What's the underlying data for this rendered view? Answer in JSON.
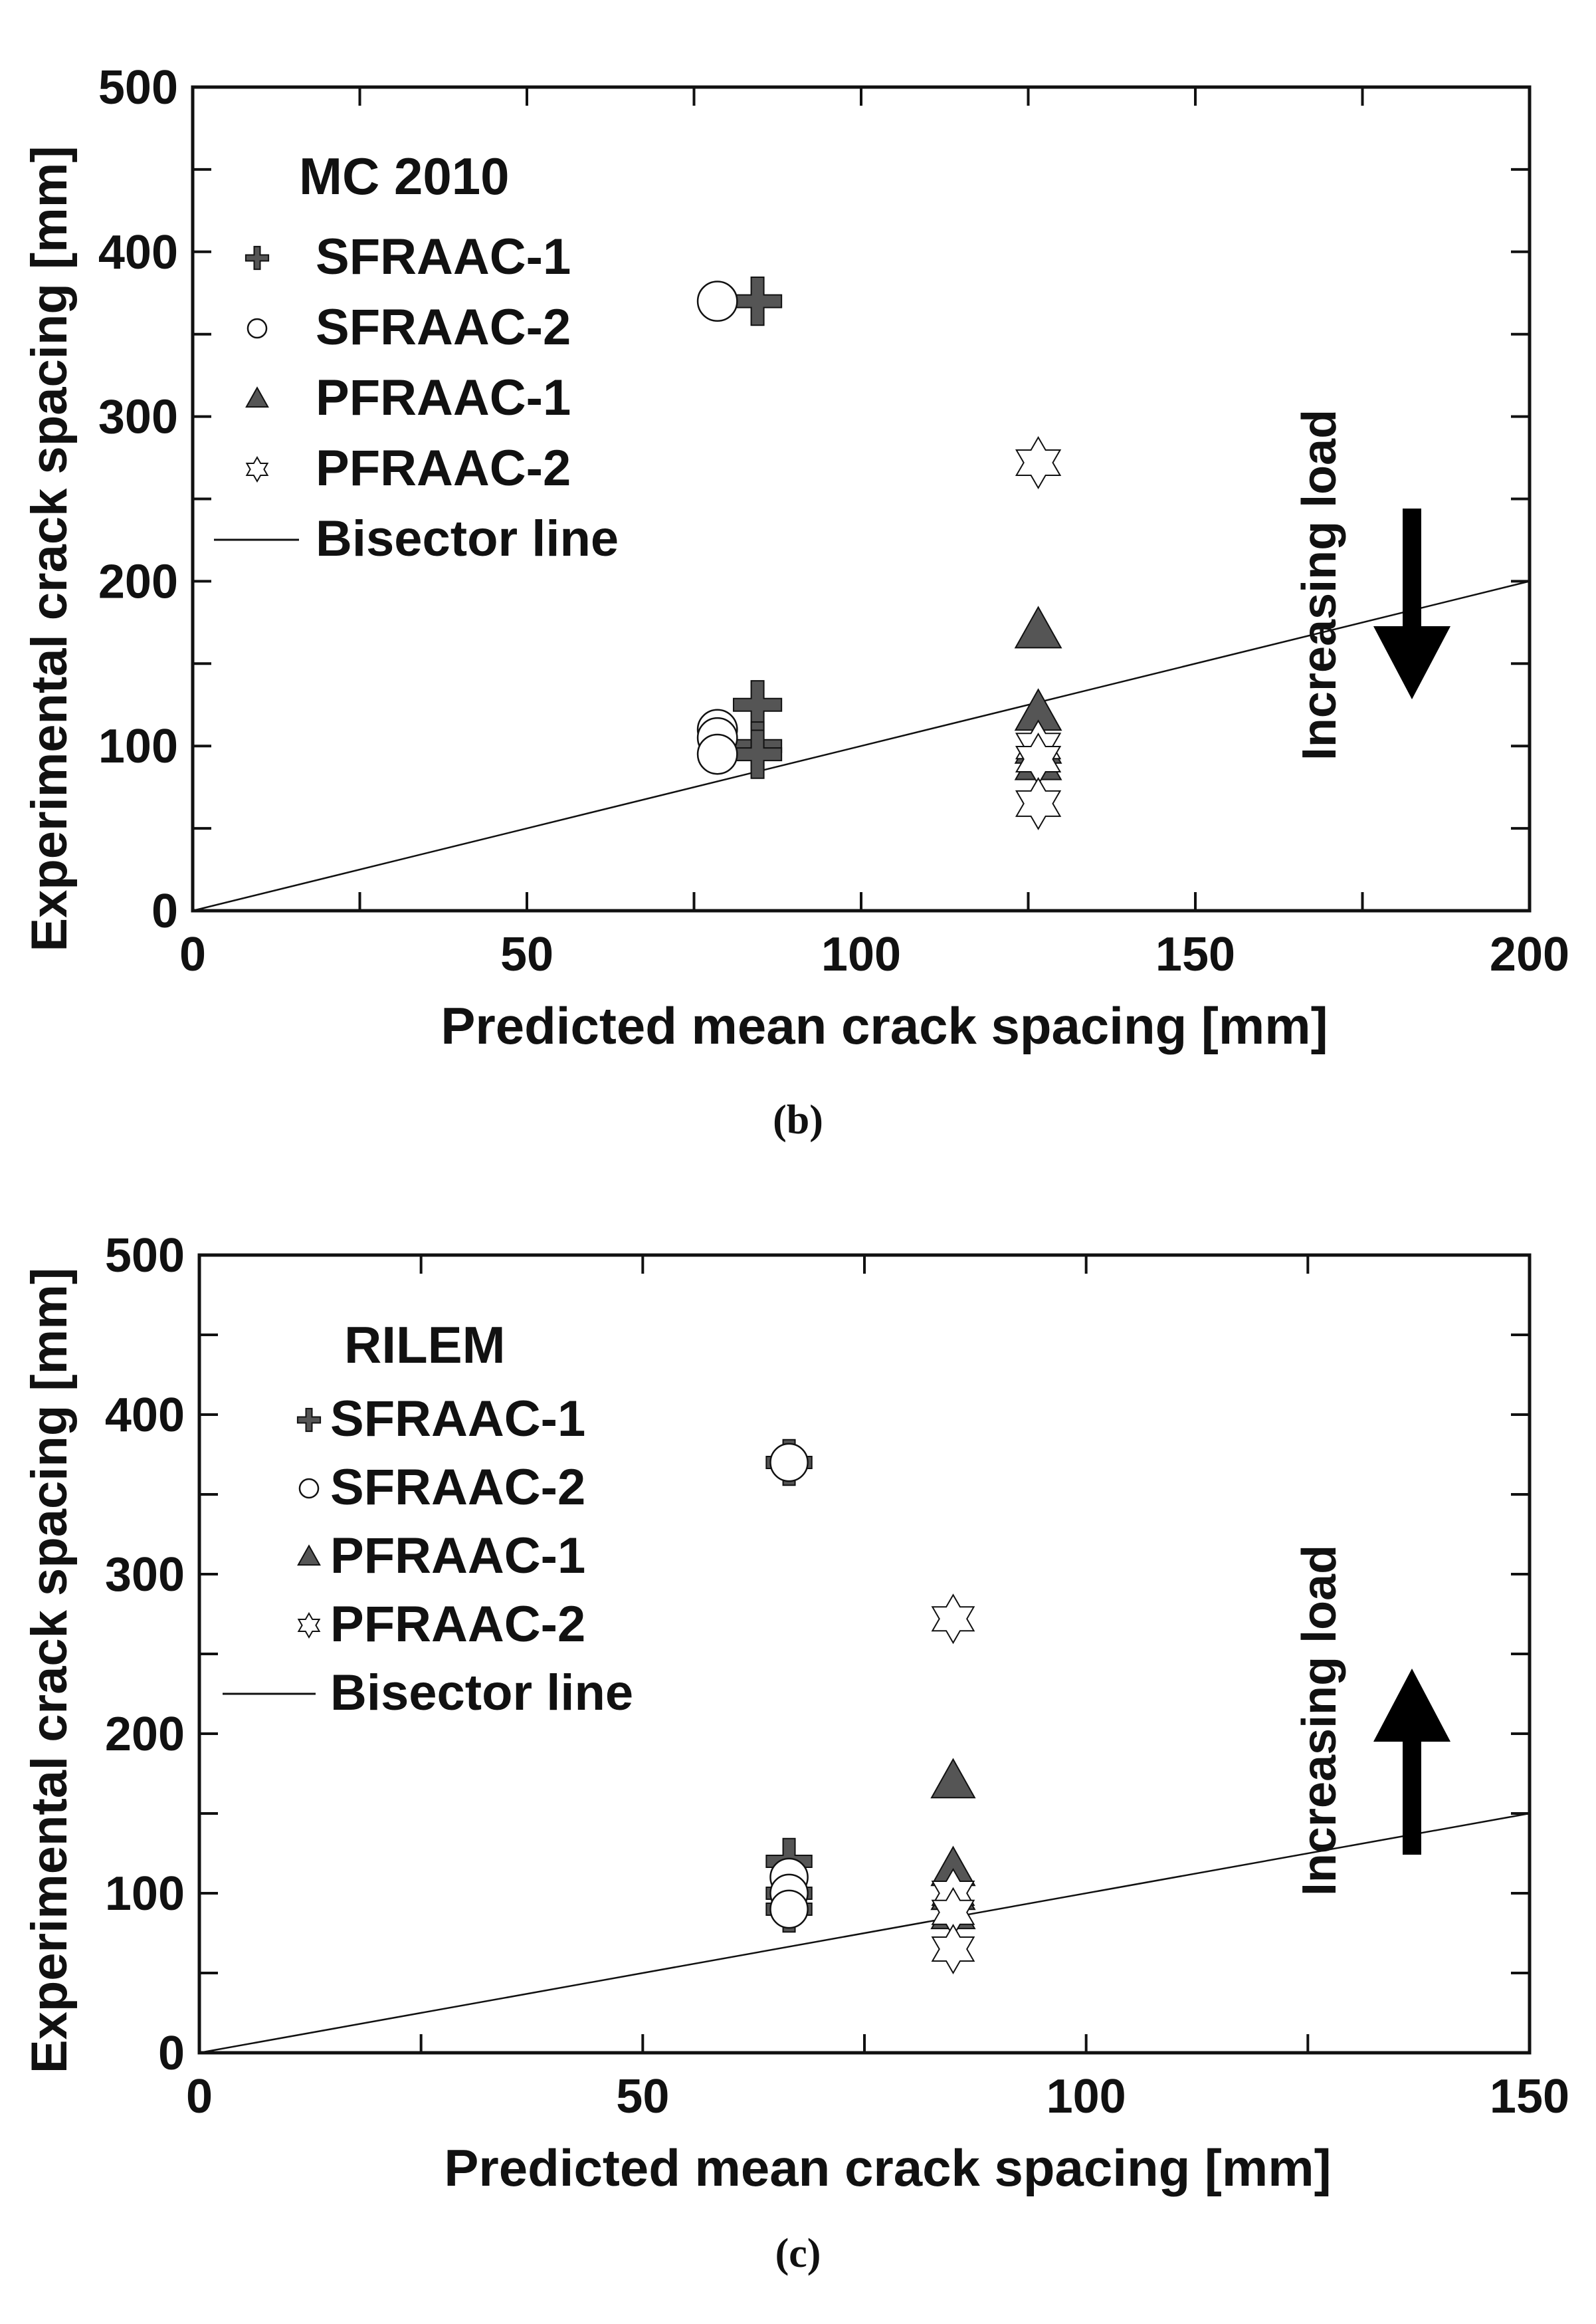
{
  "chart_data": [
    {
      "type": "scatter",
      "panel_label": "(b)",
      "legend_title": "MC 2010",
      "xlabel": "Predicted mean crack spacing [mm]",
      "ylabel": "Experimental crack spacing [mm]",
      "xlim": [
        0,
        200
      ],
      "ylim": [
        0,
        500
      ],
      "xticks": [
        "0",
        "50",
        "100",
        "150",
        "200"
      ],
      "yticks": [
        "0",
        "100",
        "200",
        "300",
        "400",
        "500"
      ],
      "xticks_v": [
        0,
        50,
        100,
        150,
        200
      ],
      "yticks_v": [
        0,
        100,
        200,
        300,
        400,
        500
      ],
      "legend_position": "top-left",
      "annotation": {
        "text": "Increasing load",
        "arrow": "down"
      },
      "series": [
        {
          "name": "SFRAAC-1",
          "marker": "plus",
          "x": [
            84.5,
            84.5,
            84.5,
            84.5
          ],
          "y": [
            370,
            125,
            100,
            95
          ]
        },
        {
          "name": "SFRAAC-2",
          "marker": "circle",
          "x": [
            78.5,
            78.5,
            78.5,
            78.5
          ],
          "y": [
            370,
            110,
            105,
            95
          ]
        },
        {
          "name": "PFRAAC-1",
          "marker": "triangle",
          "x": [
            126.5,
            126.5,
            126.5,
            126.5
          ],
          "y": [
            170,
            120,
            100,
            90
          ]
        },
        {
          "name": "PFRAAC-2",
          "marker": "star",
          "x": [
            126.5,
            126.5,
            126.5,
            126.5
          ],
          "y": [
            272,
            100,
            92,
            65
          ]
        },
        {
          "name": "Bisector line",
          "marker": "line",
          "x": [
            0,
            200
          ],
          "y": [
            0,
            200
          ]
        }
      ]
    },
    {
      "type": "scatter",
      "panel_label": "(c)",
      "legend_title": "RILEM",
      "xlabel": "Predicted mean crack spacing [mm]",
      "ylabel": "Experimental crack spacing [mm]",
      "xlim": [
        0,
        150
      ],
      "ylim": [
        0,
        500
      ],
      "xticks": [
        "0",
        "50",
        "100",
        "150"
      ],
      "yticks": [
        "0",
        "100",
        "200",
        "300",
        "400",
        "500"
      ],
      "xticks_v": [
        0,
        50,
        100,
        150
      ],
      "yticks_v": [
        0,
        100,
        200,
        300,
        400,
        500
      ],
      "legend_position": "top-left",
      "annotation": {
        "text": "Increasing load",
        "arrow": "up"
      },
      "series": [
        {
          "name": "SFRAAC-1",
          "marker": "plus",
          "x": [
            66.5,
            66.5,
            66.5,
            66.5
          ],
          "y": [
            370,
            120,
            100,
            90
          ]
        },
        {
          "name": "SFRAAC-2",
          "marker": "circle",
          "x": [
            66.5,
            66.5,
            66.5,
            66.5
          ],
          "y": [
            370,
            110,
            100,
            90
          ]
        },
        {
          "name": "PFRAAC-1",
          "marker": "triangle",
          "x": [
            85,
            85,
            85,
            85
          ],
          "y": [
            170,
            115,
            100,
            88
          ]
        },
        {
          "name": "PFRAAC-2",
          "marker": "star",
          "x": [
            85,
            85,
            85,
            85
          ],
          "y": [
            272,
            100,
            88,
            65
          ]
        },
        {
          "name": "Bisector line",
          "marker": "line",
          "x": [
            0,
            150
          ],
          "y": [
            0,
            150
          ]
        }
      ]
    }
  ],
  "colors": {
    "dark_marker": "#555555",
    "outline": "#111111",
    "open_fill": "#ffffff"
  }
}
